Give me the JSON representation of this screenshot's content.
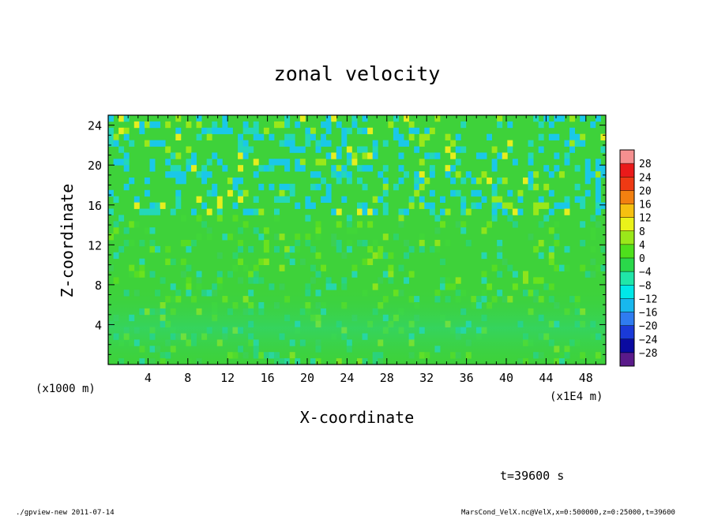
{
  "chart_data": {
    "type": "heatmap",
    "title": "zonal velocity",
    "xlabel": "X-coordinate",
    "ylabel": "Z-coordinate",
    "x_units_note": "(x1E4 m)",
    "y_units_note": "(x1000 m)",
    "xlim": [
      0,
      50
    ],
    "ylim": [
      0,
      25
    ],
    "x_ticks": [
      4,
      8,
      12,
      16,
      20,
      24,
      28,
      32,
      36,
      40,
      44,
      48
    ],
    "y_ticks": [
      4,
      8,
      12,
      16,
      20,
      24
    ],
    "time_label": "t=39600 s",
    "colorbar": {
      "levels": [
        -28,
        -24,
        -20,
        -16,
        -12,
        -8,
        -4,
        0,
        4,
        8,
        12,
        16,
        20,
        24,
        28
      ],
      "colors": [
        "#5a1a8a",
        "#0a0aa0",
        "#1a3ad8",
        "#2f7cf0",
        "#18b8ee",
        "#00e8e8",
        "#20e6a8",
        "#2ad84a",
        "#4ee01c",
        "#9ae81a",
        "#eaf21a",
        "#f6c010",
        "#f28010",
        "#ee3a14",
        "#ea1a1a",
        "#f59090"
      ]
    }
  },
  "footer": {
    "left": "./gpview-new  2011-07-14",
    "right": "MarsCond_VelX.nc@VelX,x=0:500000,z=0:25000,t=39600"
  }
}
